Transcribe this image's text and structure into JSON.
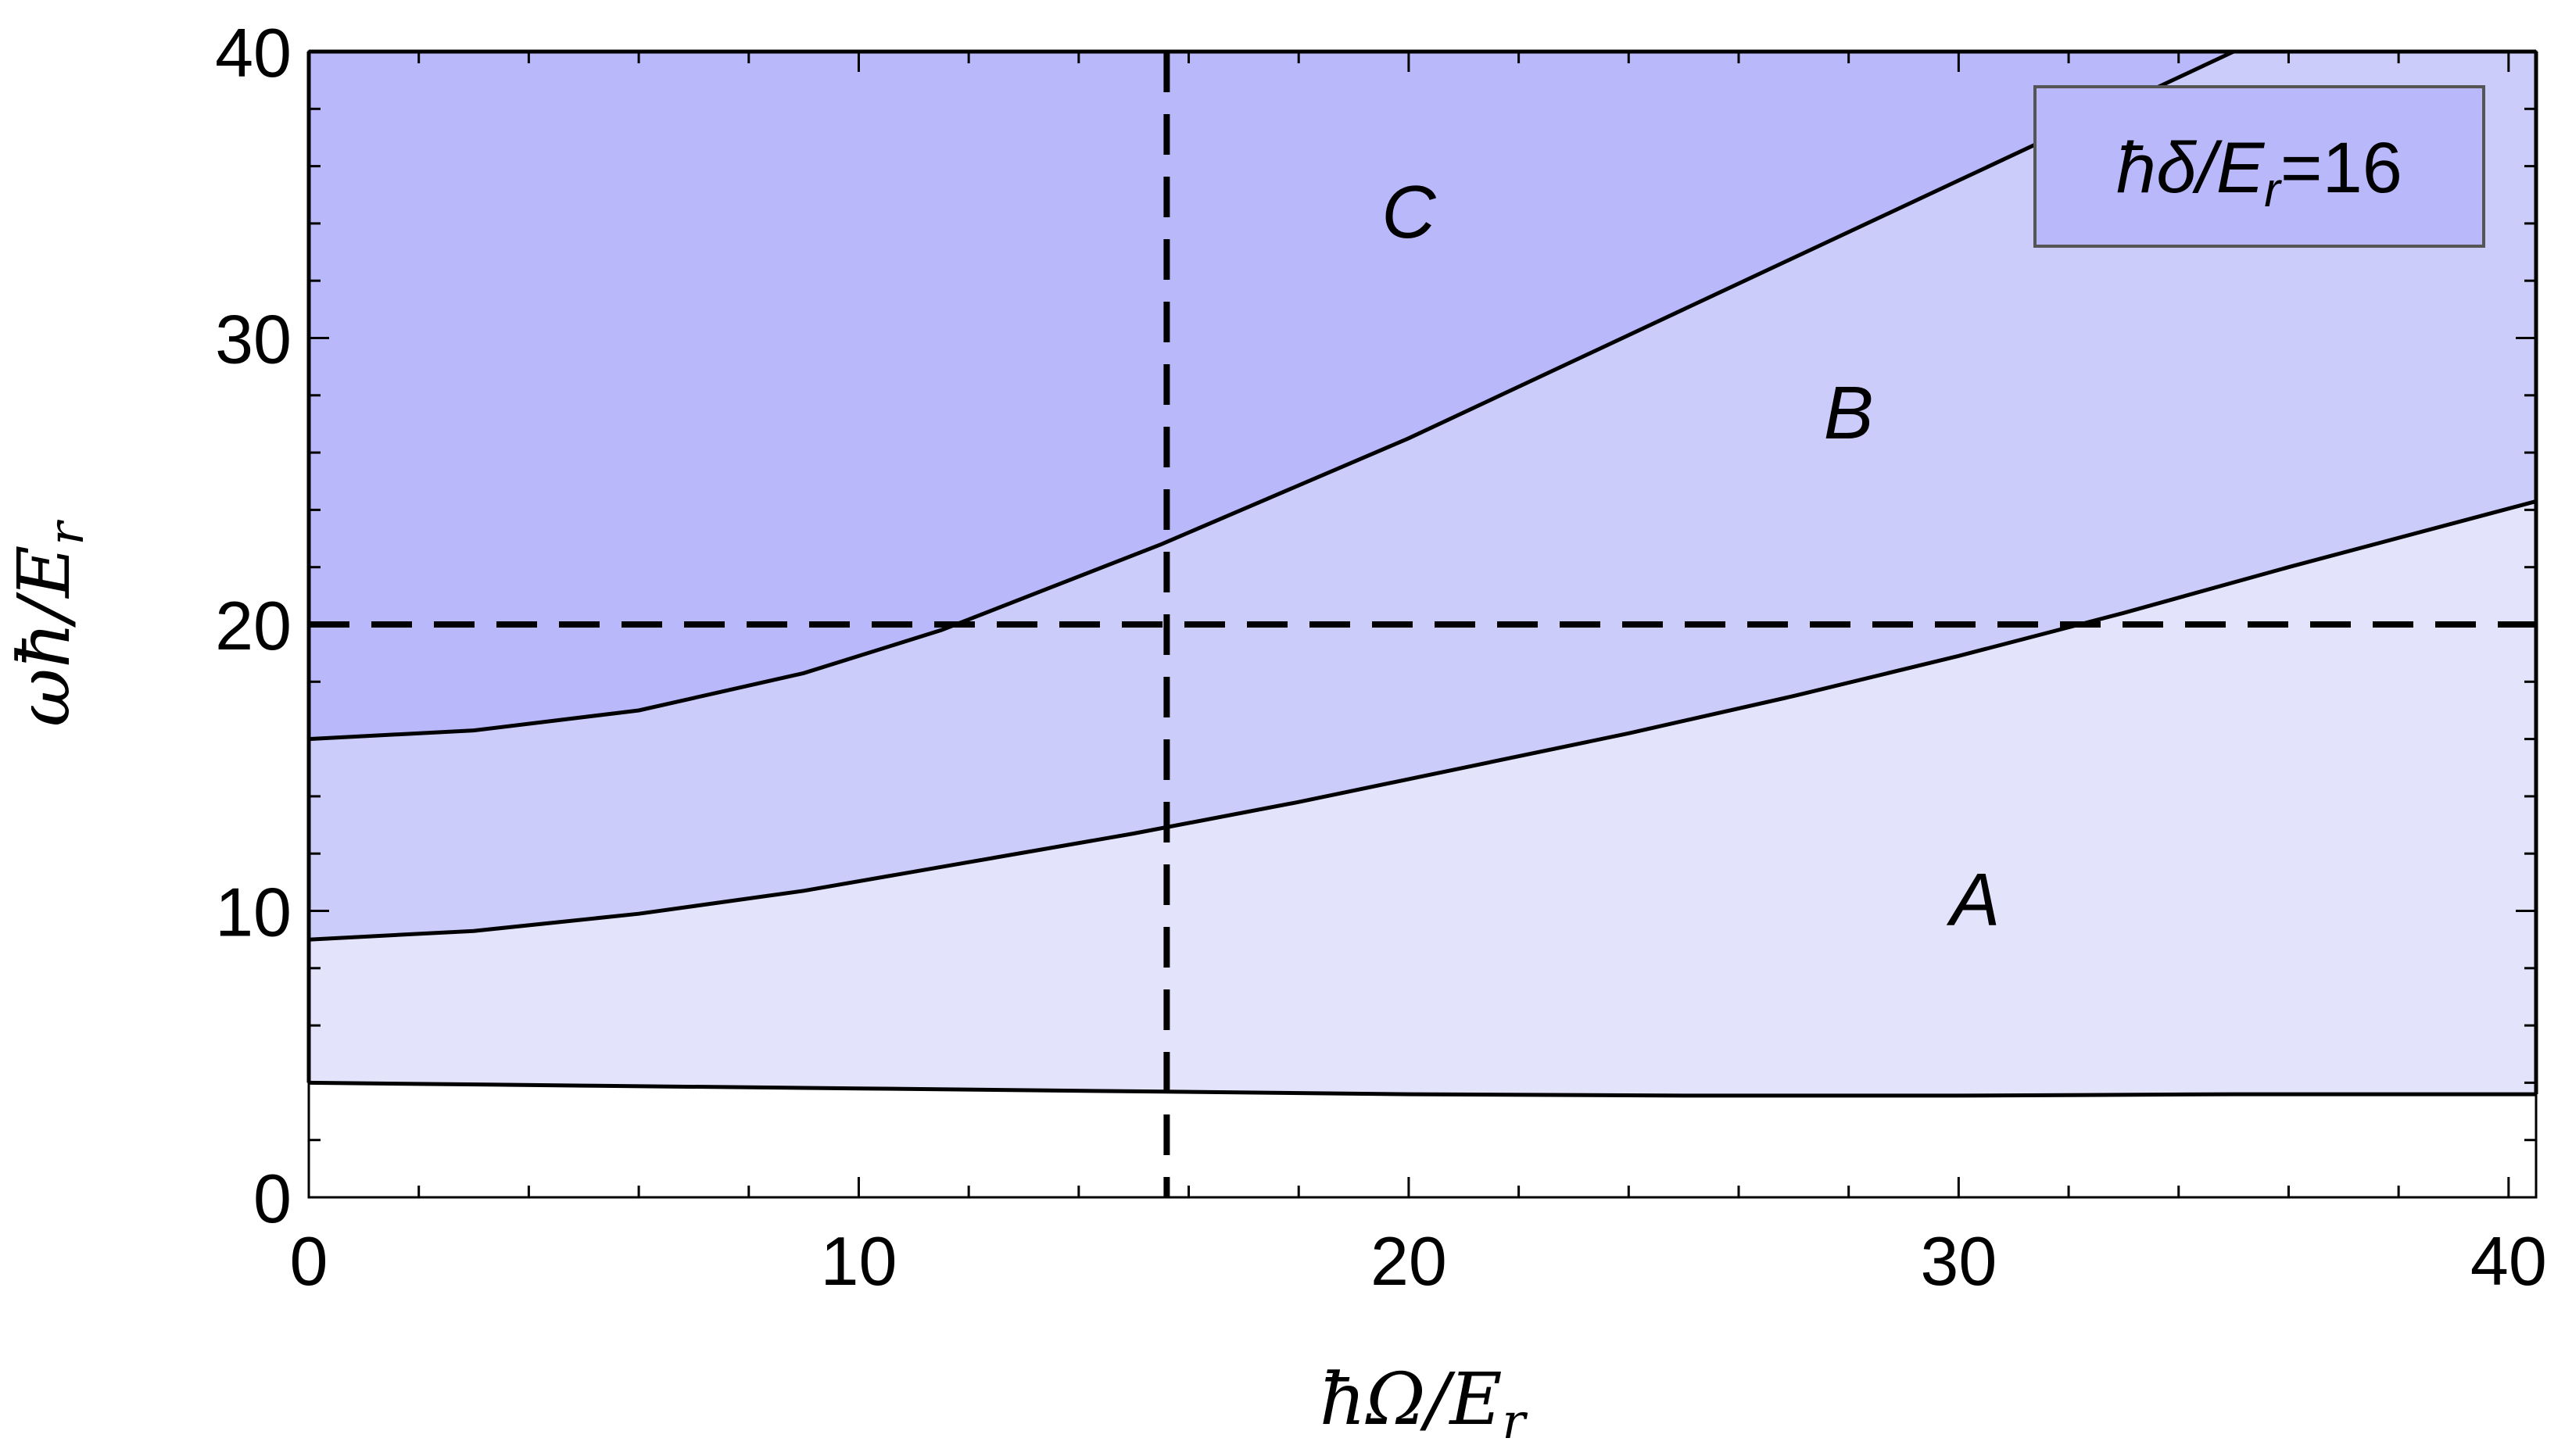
{
  "chart_data": {
    "type": "area",
    "xlabel": "ħΩ/E",
    "xlabel_sub": "r",
    "ylabel": "ωħ/E",
    "ylabel_sub": "r",
    "xlim": [
      0,
      40.5
    ],
    "ylim": [
      0,
      40
    ],
    "x_ticks": [
      0,
      10,
      20,
      30,
      40
    ],
    "y_ticks": [
      0,
      10,
      20,
      30,
      40
    ],
    "minor_tick_step": 2,
    "legend": {
      "text_prefix": "ħδ/E",
      "text_sub": "r",
      "text_suffix": "=16",
      "placement": "top-right"
    },
    "colors": {
      "region_A": "#e3e3fb",
      "region_B": "#ccccfa",
      "region_C": "#b8b8fa",
      "lines": "#000000"
    },
    "curves": [
      {
        "name": "lower_boundary",
        "x": [
          0,
          5,
          10,
          15,
          20,
          25,
          30,
          35,
          40.5
        ],
        "y": [
          4.0,
          3.9,
          3.8,
          3.7,
          3.6,
          3.55,
          3.55,
          3.6,
          3.6
        ]
      },
      {
        "name": "middle_boundary",
        "x": [
          0,
          3,
          6,
          9,
          12,
          15,
          18,
          21,
          24,
          27,
          30,
          33,
          36,
          40.5
        ],
        "y": [
          9.0,
          9.3,
          9.9,
          10.7,
          11.7,
          12.7,
          13.8,
          15.0,
          16.2,
          17.5,
          18.9,
          20.4,
          22.0,
          24.3
        ]
      },
      {
        "name": "upper_boundary",
        "x": [
          0,
          3,
          6,
          9,
          11.5,
          15.5,
          20,
          25,
          30,
          35
        ],
        "y": [
          16.0,
          16.3,
          17.0,
          18.3,
          19.8,
          22.8,
          26.5,
          31.0,
          35.5,
          40.0
        ]
      }
    ],
    "reference_lines": [
      {
        "orientation": "horizontal",
        "y": 20
      },
      {
        "orientation": "vertical",
        "x": 15.6
      }
    ],
    "regions": [
      {
        "label": "A",
        "x": 30.3,
        "y": 9.5
      },
      {
        "label": "B",
        "x": 28.0,
        "y": 26.5
      },
      {
        "label": "C",
        "x": 20.0,
        "y": 33.5
      }
    ]
  }
}
